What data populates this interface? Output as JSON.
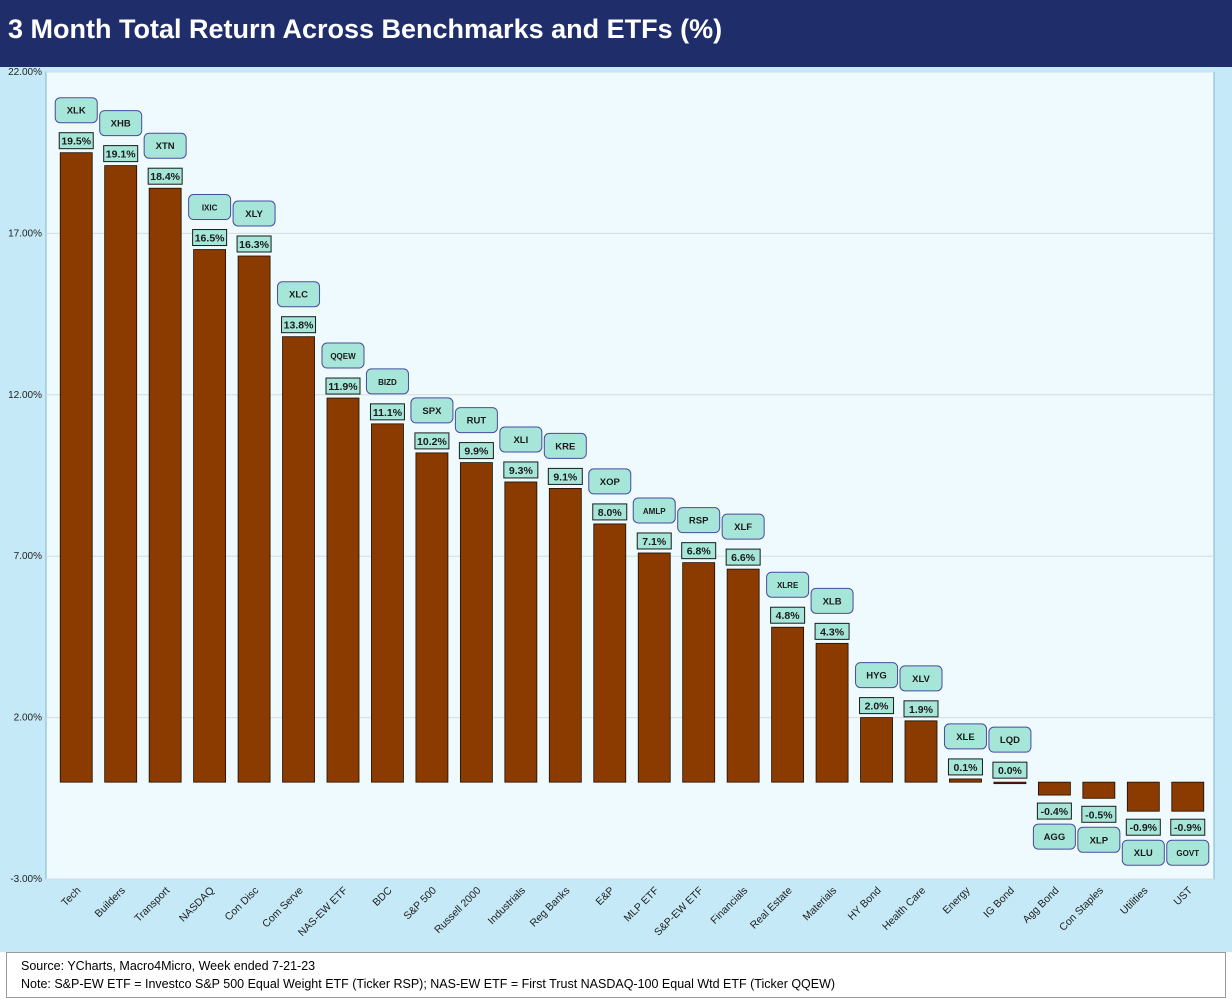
{
  "title": "3 Month Total Return Across Benchmarks and ETFs (%)",
  "footer": {
    "source": "Source: YCharts, Macro4Micro, Week ended 7-21-23",
    "note": "Note: S&P-EW ETF = Investco S&P 500 Equal Weight ETF (Ticker RSP); NAS-EW ETF = First Trust NASDAQ-100 Equal Wtd ETF (Ticker QQEW)"
  },
  "colors": {
    "bar": "#8b3a00",
    "plot_background": "#eefafd",
    "chart_background": "#c5e9f7",
    "label_box": "#a6e6d8",
    "title_bar": "#1f2d6b"
  },
  "chart_data": {
    "type": "bar",
    "title": "3 Month Total Return Across Benchmarks and ETFs (%)",
    "categories": [
      "Tech",
      "Builders",
      "Transport",
      "NASDAQ",
      "Con Disc",
      "Com Serve",
      "NAS-EW ETF",
      "BDC",
      "S&P 500",
      "Russell 2000",
      "Industrials",
      "Reg Banks",
      "E&P",
      "MLP ETF",
      "S&P-EW ETF",
      "Financials",
      "Real Estate",
      "Materials",
      "HY Bond",
      "Health Care",
      "Energy",
      "IG Bond",
      "Agg Bond",
      "Con Staples",
      "Utilities",
      "UST"
    ],
    "tickers": [
      "XLK",
      "XHB",
      "XTN",
      "IXIC",
      "XLY",
      "XLC",
      "QQEW",
      "BIZD",
      "SPX",
      "RUT",
      "XLI",
      "KRE",
      "XOP",
      "AMLP",
      "RSP",
      "XLF",
      "XLRE",
      "XLB",
      "HYG",
      "XLV",
      "XLE",
      "LQD",
      "AGG",
      "XLP",
      "XLU",
      "GOVT"
    ],
    "values": [
      19.5,
      19.1,
      18.4,
      16.5,
      16.3,
      13.8,
      11.9,
      11.1,
      10.2,
      9.9,
      9.3,
      9.1,
      8.0,
      7.1,
      6.8,
      6.6,
      4.8,
      4.3,
      2.0,
      1.9,
      0.1,
      0.0,
      -0.4,
      -0.5,
      -0.9,
      -0.9
    ],
    "value_labels": [
      "19.5%",
      "19.1%",
      "18.4%",
      "16.5%",
      "16.3%",
      "13.8%",
      "11.9%",
      "11.1%",
      "10.2%",
      "9.9%",
      "9.3%",
      "9.1%",
      "8.0%",
      "7.1%",
      "6.8%",
      "6.6%",
      "4.8%",
      "4.3%",
      "2.0%",
      "1.9%",
      "0.1%",
      "0.0%",
      "-0.4%",
      "-0.5%",
      "-0.9%",
      "-0.9%"
    ],
    "ylim": [
      -3.0,
      22.0
    ],
    "yticks": [
      -3.0,
      2.0,
      7.0,
      12.0,
      17.0,
      22.0
    ],
    "ytick_labels": [
      "-3.00%",
      "2.00%",
      "7.00%",
      "12.00%",
      "17.00%",
      "22.00%"
    ],
    "grid": true,
    "legend": "none"
  }
}
